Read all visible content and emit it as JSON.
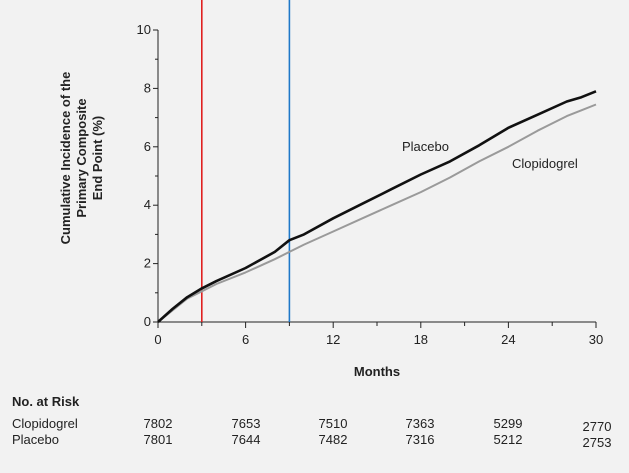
{
  "chart_data": {
    "type": "line",
    "xlabel": "Months",
    "ylabel": [
      "Cumulative Incidence of the",
      "Primary Composite",
      "End Point (%)"
    ],
    "xlim": [
      0,
      30
    ],
    "ylim": [
      0,
      10
    ],
    "xticks": [
      "0",
      "6",
      "12",
      "18",
      "24",
      "30"
    ],
    "yticks": [
      "0",
      "2",
      "4",
      "6",
      "8",
      "10"
    ],
    "grid": false,
    "reference_lines": [
      {
        "x": 3,
        "color": "#e02020"
      },
      {
        "x": 9,
        "color": "#1f78c8"
      }
    ],
    "series": [
      {
        "name": "Placebo",
        "color": "#111111",
        "x": [
          0,
          1,
          2,
          3,
          4,
          6,
          8,
          9,
          10,
          12,
          14,
          16,
          18,
          20,
          22,
          24,
          26,
          28,
          29,
          30
        ],
        "y": [
          0,
          0.45,
          0.85,
          1.15,
          1.4,
          1.85,
          2.4,
          2.8,
          3.0,
          3.55,
          4.05,
          4.55,
          5.05,
          5.5,
          6.05,
          6.65,
          7.1,
          7.55,
          7.7,
          7.9
        ]
      },
      {
        "name": "Clopidogrel",
        "color": "#9a9a9a",
        "x": [
          0,
          1,
          2,
          3,
          4,
          6,
          8,
          9,
          10,
          12,
          14,
          16,
          18,
          20,
          22,
          24,
          26,
          28,
          29,
          30
        ],
        "y": [
          0,
          0.4,
          0.8,
          1.05,
          1.3,
          1.7,
          2.15,
          2.4,
          2.65,
          3.1,
          3.55,
          4.0,
          4.45,
          4.95,
          5.5,
          6.0,
          6.55,
          7.05,
          7.25,
          7.45
        ]
      }
    ]
  },
  "risk_table": {
    "title": "No. at Risk",
    "rows": [
      {
        "label": "Clopidogrel",
        "values": [
          "7802",
          "7653",
          "7510",
          "7363",
          "5299",
          "2770"
        ]
      },
      {
        "label": "Placebo",
        "values": [
          "7801",
          "7644",
          "7482",
          "7316",
          "5212",
          "2753"
        ]
      }
    ]
  }
}
